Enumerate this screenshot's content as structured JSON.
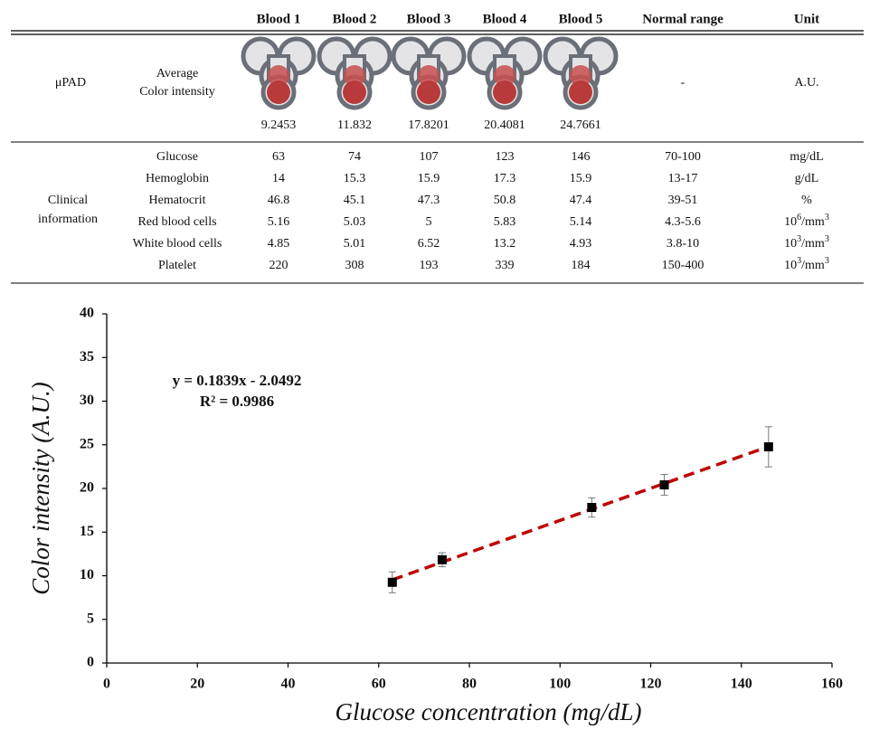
{
  "table": {
    "header": [
      "Blood 1",
      "Blood 2",
      "Blood 3",
      "Blood 4",
      "Blood 5",
      "Normal range",
      "Unit"
    ],
    "upad_row": {
      "group": "μPAD",
      "label": [
        "Average",
        "Color intensity"
      ],
      "values": [
        "9.2453",
        "11.832",
        "17.8201",
        "20.4081",
        "24.7661"
      ],
      "range": "-",
      "unit": [
        "A.U."
      ]
    },
    "clinical_group": [
      "Clinical",
      "information"
    ],
    "clinical_rows": [
      {
        "label": "Glucose",
        "values": [
          "63",
          "74",
          "107",
          "123",
          "146"
        ],
        "range": "70-100",
        "unit": [
          "mg/dL"
        ]
      },
      {
        "label": "Hemoglobin",
        "values": [
          "14",
          "15.3",
          "15.9",
          "17.3",
          "15.9"
        ],
        "range": "13-17",
        "unit": [
          "g/dL"
        ]
      },
      {
        "label": "Hematocrit",
        "values": [
          "46.8",
          "45.1",
          "47.3",
          "50.8",
          "47.4"
        ],
        "range": "39-51",
        "unit": [
          "%"
        ]
      },
      {
        "label": "Red blood cells",
        "values": [
          "5.16",
          "5.03",
          "5",
          "5.83",
          "5.14"
        ],
        "range": "4.3-5.6",
        "unit": [
          "10",
          "6",
          "/mm",
          "3"
        ]
      },
      {
        "label": "White blood cells",
        "values": [
          "4.85",
          "5.01",
          "6.52",
          "13.2",
          "4.93"
        ],
        "range": "3.8-10",
        "unit": [
          "10",
          "3",
          "/mm",
          "3"
        ]
      },
      {
        "label": "Platelet",
        "values": [
          "220",
          "308",
          "193",
          "339",
          "184"
        ],
        "range": "150-400",
        "unit": [
          "10",
          "3",
          "/mm",
          "3"
        ]
      }
    ]
  },
  "chart_data": {
    "type": "scatter",
    "x_label": "Glucose concentration (mg/dL)",
    "y_label": "Color intensity (A.U.)",
    "annotations": [
      "y = 0.1839x - 2.0492",
      "R² = 0.9986"
    ],
    "x": [
      63,
      74,
      107,
      123,
      146
    ],
    "values": [
      9.2453,
      11.832,
      17.8201,
      20.4081,
      24.7661
    ],
    "errors": [
      1.2,
      0.8,
      1.1,
      1.2,
      2.3
    ],
    "color": "#000000",
    "trendline": {
      "slope": 0.1839,
      "intercept": -2.0492,
      "color": "#c00000"
    },
    "xlim": [
      0,
      160
    ],
    "xticks": [
      0,
      20,
      40,
      60,
      80,
      100,
      120,
      140,
      160
    ],
    "ylim": [
      0,
      40
    ],
    "yticks": [
      0,
      5,
      10,
      15,
      20,
      25,
      30,
      35,
      40
    ]
  }
}
